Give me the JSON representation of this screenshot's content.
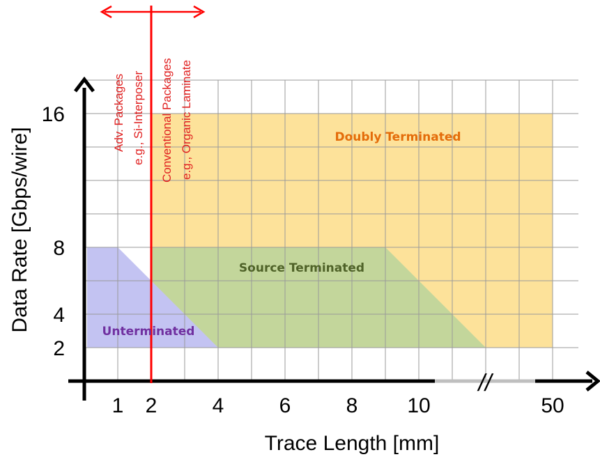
{
  "colors": {
    "doubly": "#fde29a",
    "source": "#c3d69b",
    "unterminated": "#c3c3f2",
    "doubly_text": "#e46c0a",
    "source_text": "#4f6228",
    "unterminated_text": "#7030a0",
    "red_line": "#ff0000",
    "axis": "#000000",
    "gap": "#bfbfbf"
  },
  "axes": {
    "x_title": "Trace Length [mm]",
    "y_title": "Data Rate [Gbps/wire]",
    "x_ticks": [
      "1",
      "2",
      "4",
      "6",
      "8",
      "10",
      "50"
    ],
    "y_ticks": [
      "16",
      "8",
      "4",
      "2"
    ],
    "break_mark": "//"
  },
  "regions": {
    "doubly": "Doubly Terminated",
    "source": "Source Terminated",
    "unterminated": "Unterminated"
  },
  "packages": {
    "adv_line1": "Adv. Packages",
    "adv_line2": "e.g., Si-Interposer",
    "conv_line1": "Conventional Packages",
    "conv_line2": "e.g., Organic Laminate"
  }
}
